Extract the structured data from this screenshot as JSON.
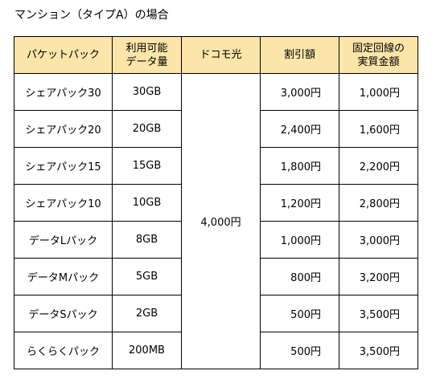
{
  "caption": "マンション（タイプA）の場合",
  "headers": {
    "packet": "パケットパック",
    "data_line1": "利用可能",
    "data_line2": "データ量",
    "docomo": "ドコモ光",
    "discount": "割引額",
    "real_line1": "固定回線の",
    "real_line2": "実質金額"
  },
  "docomo_price": "4,000円",
  "rows": [
    {
      "plan": "シェアパック30",
      "data": "30GB",
      "discount": "3,000円",
      "real": "1,000円"
    },
    {
      "plan": "シェアパック20",
      "data": "20GB",
      "discount": "2,400円",
      "real": "1,600円"
    },
    {
      "plan": "シェアパック15",
      "data": "15GB",
      "discount": "1,800円",
      "real": "2,200円"
    },
    {
      "plan": "シェアパック10",
      "data": "10GB",
      "discount": "1,200円",
      "real": "2,800円"
    },
    {
      "plan": "データLパック",
      "data": "8GB",
      "discount": "1,000円",
      "real": "3,000円"
    },
    {
      "plan": "データMパック",
      "data": "5GB",
      "discount": "800円",
      "real": "3,200円"
    },
    {
      "plan": "データSパック",
      "data": "2GB",
      "discount": "500円",
      "real": "3,500円"
    },
    {
      "plan": "らくらくパック",
      "data": "200MB",
      "discount": "500円",
      "real": "3,500円"
    }
  ]
}
